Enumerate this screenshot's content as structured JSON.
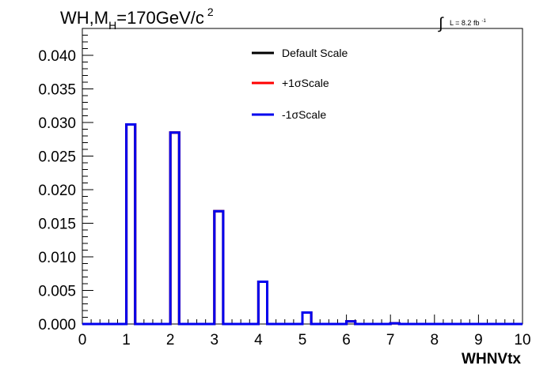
{
  "chart_data": {
    "type": "histogram",
    "title_main": "WH,M",
    "title_sub": "H",
    "title_rest": "=170GeV/c",
    "title_sup": "2",
    "lumi_symbol": "∫",
    "lumi_text": "L = 8.2 fb",
    "lumi_sup": "-1",
    "xlabel": "WHNVtx",
    "ylabel": "",
    "xlim": [
      0,
      10
    ],
    "ylim": [
      0,
      0.044
    ],
    "x_ticks": [
      "0",
      "1",
      "2",
      "3",
      "4",
      "5",
      "6",
      "7",
      "8",
      "9",
      "10"
    ],
    "y_ticks": [
      "0.000",
      "0.005",
      "0.010",
      "0.015",
      "0.020",
      "0.025",
      "0.030",
      "0.035",
      "0.040"
    ],
    "y_tick_values": [
      0,
      0.005,
      0.01,
      0.015,
      0.02,
      0.025,
      0.03,
      0.035,
      0.04
    ],
    "bin_edges": [
      0,
      0.2,
      0.4,
      0.6,
      0.8,
      1.0,
      1.2,
      1.4,
      1.6,
      1.8,
      2.0,
      2.2,
      2.4,
      2.6,
      2.8,
      3.0,
      3.2,
      3.4,
      3.6,
      3.8,
      4.0,
      4.2,
      4.4,
      4.6,
      4.8,
      5.0,
      5.2,
      5.4,
      5.6,
      5.8,
      6.0,
      6.2,
      6.4,
      6.6,
      6.8,
      7.0,
      7.2,
      7.4,
      7.6,
      7.8,
      8.0,
      8.2,
      8.4,
      8.6,
      8.8,
      9.0,
      9.2,
      9.4,
      9.6,
      9.8,
      10.0
    ],
    "legend_position": "top-center",
    "series": [
      {
        "name": "Default Scale",
        "color": "#000000",
        "values": [
          0,
          0,
          0,
          0,
          0,
          0.0297,
          0,
          0,
          0,
          0,
          0.0285,
          0,
          0,
          0,
          0,
          0.0168,
          0,
          0,
          0,
          0,
          0.0063,
          0,
          0,
          0,
          0,
          0.0017,
          0,
          0,
          0,
          0,
          0.0004,
          0,
          0,
          0,
          0,
          0.0001,
          0,
          0,
          0,
          0,
          0,
          0,
          0,
          0,
          0,
          0,
          0,
          0,
          0,
          0
        ]
      },
      {
        "name": "+1σScale",
        "color": "#ff0000",
        "values": [
          0,
          0,
          0,
          0,
          0,
          0.0297,
          0,
          0,
          0,
          0,
          0.0285,
          0,
          0,
          0,
          0,
          0.0168,
          0,
          0,
          0,
          0,
          0.0063,
          0,
          0,
          0,
          0,
          0.0017,
          0,
          0,
          0,
          0,
          0.0004,
          0,
          0,
          0,
          0,
          0.0001,
          0,
          0,
          0,
          0,
          0,
          0,
          0,
          0,
          0,
          0,
          0,
          0,
          0,
          0
        ]
      },
      {
        "name": "-1σScale",
        "color": "#0000ee",
        "values": [
          0,
          0,
          0,
          0,
          0,
          0.0297,
          0,
          0,
          0,
          0,
          0.0285,
          0,
          0,
          0,
          0,
          0.0168,
          0,
          0,
          0,
          0,
          0.0063,
          0,
          0,
          0,
          0,
          0.0017,
          0,
          0,
          0,
          0,
          0.0004,
          0,
          0,
          0,
          0,
          0.0001,
          0,
          0,
          0,
          0,
          0,
          0,
          0,
          0,
          0,
          0,
          0,
          0,
          0,
          0
        ]
      }
    ]
  }
}
